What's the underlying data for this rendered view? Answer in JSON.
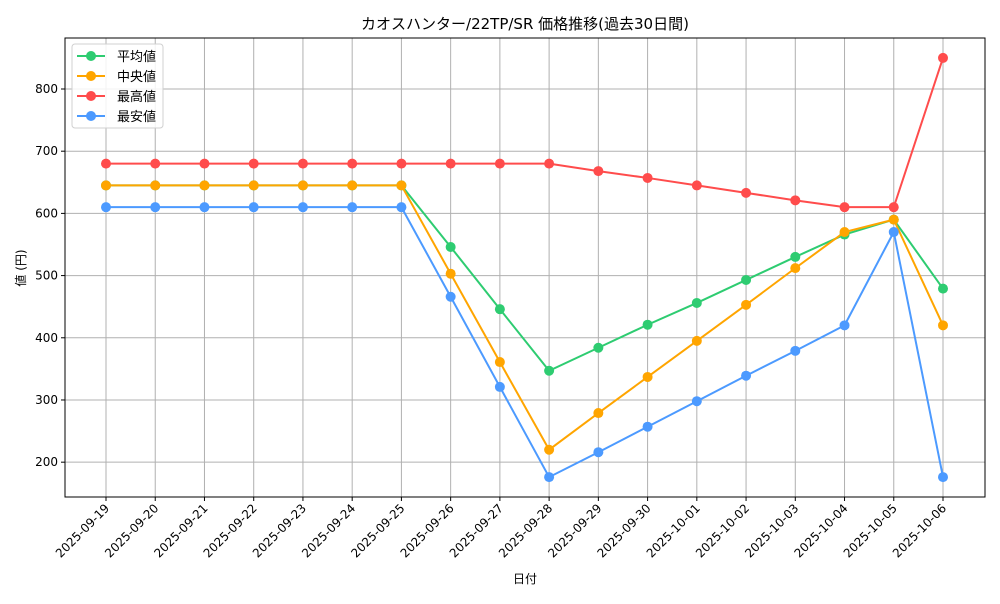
{
  "chart_data": {
    "type": "line",
    "title": "カオスハンター/22TP/SR 価格推移(過去30日間)",
    "xlabel": "日付",
    "ylabel": "値 (円)",
    "ylim": [
      144,
      882
    ],
    "yticks": [
      200,
      300,
      400,
      500,
      600,
      700,
      800
    ],
    "grid": true,
    "legend_position": "top-left",
    "categories": [
      "2025-09-19",
      "2025-09-20",
      "2025-09-21",
      "2025-09-22",
      "2025-09-23",
      "2025-09-24",
      "2025-09-25",
      "2025-09-26",
      "2025-09-27",
      "2025-09-28",
      "2025-09-29",
      "2025-09-30",
      "2025-10-01",
      "2025-10-02",
      "2025-10-03",
      "2025-10-04",
      "2025-10-05",
      "2025-10-06"
    ],
    "series": [
      {
        "name": "平均値",
        "color": "#2ecc71",
        "values": [
          645,
          645,
          645,
          645,
          645,
          645,
          645,
          546,
          446,
          347,
          384,
          421,
          456,
          493,
          530,
          566,
          590,
          479
        ]
      },
      {
        "name": "中央値",
        "color": "#ffa500",
        "values": [
          645,
          645,
          645,
          645,
          645,
          645,
          645,
          503,
          361,
          220,
          279,
          337,
          395,
          453,
          512,
          570,
          590,
          420
        ]
      },
      {
        "name": "最高値",
        "color": "#ff4c4c",
        "values": [
          680,
          680,
          680,
          680,
          680,
          680,
          680,
          680,
          680,
          680,
          668,
          657,
          645,
          633,
          621,
          610,
          610,
          850
        ]
      },
      {
        "name": "最安値",
        "color": "#4c9aff",
        "values": [
          610,
          610,
          610,
          610,
          610,
          610,
          610,
          466,
          321,
          176,
          216,
          257,
          298,
          339,
          379,
          420,
          570,
          176
        ]
      }
    ]
  }
}
